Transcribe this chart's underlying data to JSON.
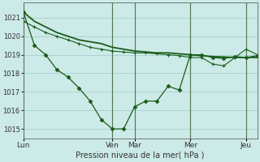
{
  "background_color": "#cceae7",
  "plot_bg_color": "#cceae7",
  "grid_color": "#aad4d0",
  "line_color": "#1a5c1a",
  "xlabel": "Pression niveau de la mer( hPa )",
  "ylim": [
    1014.5,
    1021.8
  ],
  "yticks": [
    1015,
    1016,
    1017,
    1018,
    1019,
    1020,
    1021
  ],
  "xtick_labels": [
    "Lun",
    "Ven",
    "Mar",
    "Mer",
    "Jeu"
  ],
  "xtick_positions": [
    0,
    48,
    60,
    90,
    120
  ],
  "xlim": [
    0,
    126
  ],
  "vline_x": [
    0,
    48,
    60,
    90,
    120
  ],
  "line1_x": [
    0,
    6,
    12,
    18,
    24,
    30,
    36,
    42,
    48,
    54,
    60,
    66,
    72,
    78,
    84,
    90,
    96,
    102,
    108,
    114,
    120,
    126
  ],
  "line1_y": [
    1021.3,
    1020.8,
    1020.5,
    1020.2,
    1020.0,
    1019.8,
    1019.7,
    1019.6,
    1019.4,
    1019.3,
    1019.2,
    1019.15,
    1019.1,
    1019.1,
    1019.05,
    1019.0,
    1018.95,
    1018.9,
    1018.88,
    1018.85,
    1018.85,
    1018.85
  ],
  "line2_x": [
    0,
    6,
    12,
    18,
    24,
    30,
    36,
    42,
    48,
    54,
    60,
    66,
    72,
    78,
    84,
    90,
    96,
    102,
    108,
    114,
    120,
    126
  ],
  "line2_y": [
    1021.3,
    1019.5,
    1019.0,
    1018.2,
    1017.8,
    1017.2,
    1016.5,
    1015.5,
    1015.0,
    1015.0,
    1016.2,
    1016.5,
    1016.5,
    1017.3,
    1017.1,
    1019.0,
    1019.0,
    1018.85,
    1018.8,
    1018.9,
    1018.85,
    1018.95
  ],
  "line3_x": [
    0,
    6,
    12,
    18,
    24,
    30,
    36,
    42,
    48,
    54,
    60,
    66,
    72,
    78,
    84,
    90,
    96,
    102,
    108,
    114,
    120,
    126
  ],
  "line3_y": [
    1020.8,
    1020.5,
    1020.2,
    1020.0,
    1019.8,
    1019.6,
    1019.4,
    1019.3,
    1019.2,
    1019.15,
    1019.1,
    1019.1,
    1019.05,
    1019.0,
    1018.95,
    1018.85,
    1018.85,
    1018.5,
    1018.4,
    1018.85,
    1019.3,
    1019.0
  ]
}
